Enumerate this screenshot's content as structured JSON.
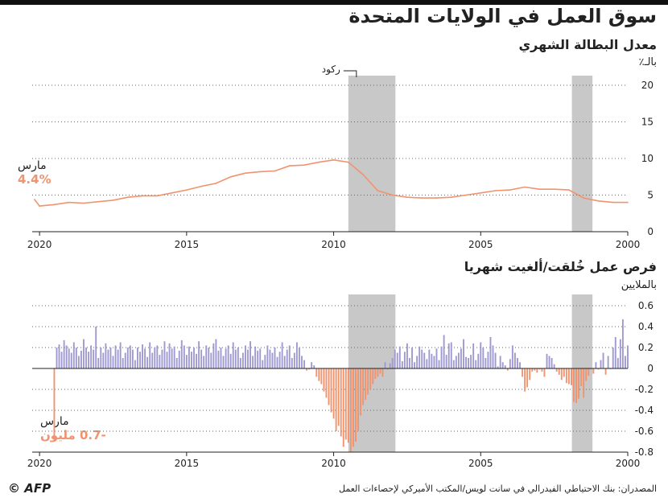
{
  "header": {
    "title": "سوق العمل في الولايات المتحدة",
    "source": "المصدران: بنك الاحتياطي الفيدرالي في سانت لويس/المكتب الأميركي لإحصاءات العمل",
    "logo": "© AFP"
  },
  "colors": {
    "line": "#f0936e",
    "pos_bar": "#9f99d1",
    "neg_bar": "#f0936e",
    "recession": "#c8c8c8",
    "grid": "#666666"
  },
  "chart_data": [
    {
      "type": "line",
      "title": "معدل البطالة الشهري",
      "ylabel": "بالـ٪",
      "x_reversed": true,
      "xlim": [
        2000.0,
        2020.25
      ],
      "ylim": [
        0,
        20
      ],
      "yticks": [
        0,
        5,
        10,
        15,
        20
      ],
      "xticks": [
        "2000",
        "2005",
        "2010",
        "2015",
        "2020"
      ],
      "recessions": [
        {
          "start": 2001.2,
          "end": 2001.9
        },
        {
          "start": 2007.9,
          "end": 2009.5
        }
      ],
      "recession_label": "ركود",
      "annotation": {
        "label": "مارس",
        "value": "4.4%"
      },
      "series": [
        {
          "x": [
            2000.0,
            2000.5,
            2001.0,
            2001.5,
            2002.0,
            2002.5,
            2003.0,
            2003.5,
            2004.0,
            2004.5,
            2005.0,
            2005.5,
            2006.0,
            2006.5,
            2007.0,
            2007.5,
            2008.0,
            2008.5,
            2009.0,
            2009.5,
            2010.0,
            2010.5,
            2011.0,
            2011.5,
            2012.0,
            2012.5,
            2013.0,
            2013.5,
            2014.0,
            2014.5,
            2015.0,
            2015.5,
            2016.0,
            2016.5,
            2017.0,
            2017.5,
            2018.0,
            2018.5,
            2019.0,
            2019.5,
            2019.75,
            2020.0,
            2020.17
          ],
          "y": [
            4.0,
            4.0,
            4.2,
            4.6,
            5.7,
            5.8,
            5.8,
            6.1,
            5.7,
            5.6,
            5.3,
            5.0,
            4.7,
            4.6,
            4.6,
            4.7,
            5.0,
            5.6,
            7.8,
            9.5,
            9.8,
            9.5,
            9.1,
            9.0,
            8.3,
            8.2,
            8.0,
            7.5,
            6.6,
            6.2,
            5.7,
            5.3,
            4.9,
            4.9,
            4.7,
            4.3,
            4.1,
            3.9,
            4.0,
            3.7,
            3.6,
            3.5,
            4.4
          ]
        }
      ]
    },
    {
      "type": "bar",
      "title": "فرص عمل خُلقت/ألغيت شهريا",
      "ylabel": "بالملايين",
      "x_reversed": true,
      "xlim": [
        2000.0,
        2020.25
      ],
      "ylim": [
        -0.8,
        0.6
      ],
      "yticks": [
        -0.8,
        -0.6,
        -0.4,
        -0.2,
        0,
        0.2,
        0.4,
        0.6
      ],
      "yticklabels": [
        "-0.8",
        "-0.6",
        "-0.4",
        "-0.2",
        "0",
        "0.2",
        "0.4",
        "0.6"
      ],
      "xticks": [
        "2000",
        "2005",
        "2010",
        "2015",
        "2020"
      ],
      "recessions": [
        {
          "start": 2001.2,
          "end": 2001.9
        },
        {
          "start": 2007.9,
          "end": 2009.5
        }
      ],
      "annotation": {
        "label": "مارس",
        "value": "-0.7 مليون"
      },
      "series": [
        {
          "start": 2000.0,
          "step": 0.08333,
          "values": [
            0.22,
            0.12,
            0.47,
            0.28,
            0.1,
            0.3,
            0.2,
            0.0,
            0.12,
            -0.06,
            0.15,
            0.08,
            -0.01,
            0.06,
            -0.05,
            0.0,
            -0.07,
            -0.12,
            -0.28,
            -0.17,
            -0.29,
            -0.33,
            -0.32,
            -0.16,
            -0.15,
            -0.14,
            -0.08,
            -0.11,
            -0.06,
            -0.03,
            0.04,
            0.1,
            0.12,
            0.14,
            -0.08,
            -0.03,
            -0.01,
            -0.04,
            -0.02,
            -0.03,
            -0.11,
            -0.18,
            -0.22,
            -0.08,
            0.06,
            0.1,
            0.15,
            0.22,
            0.09,
            -0.02,
            0.03,
            0.06,
            0.12,
            0.02,
            0.15,
            0.22,
            0.3,
            0.16,
            0.1,
            0.2,
            0.25,
            0.14,
            0.08,
            0.24,
            0.13,
            0.1,
            0.11,
            0.28,
            0.19,
            0.15,
            0.12,
            0.08,
            0.25,
            0.24,
            0.13,
            0.32,
            0.21,
            0.08,
            0.19,
            0.12,
            0.14,
            0.18,
            0.09,
            0.15,
            0.18,
            0.21,
            0.12,
            0.06,
            0.2,
            0.1,
            0.24,
            0.16,
            0.07,
            0.21,
            0.15,
            0.18,
            0.1,
            0.05,
            -0.01,
            0.06,
            -0.08,
            -0.05,
            -0.08,
            -0.1,
            -0.15,
            -0.2,
            -0.25,
            -0.3,
            -0.35,
            -0.45,
            -0.6,
            -0.7,
            -0.75,
            -0.8,
            -0.71,
            -0.68,
            -0.75,
            -0.65,
            -0.55,
            -0.6,
            -0.48,
            -0.42,
            -0.35,
            -0.28,
            -0.22,
            -0.15,
            -0.12,
            -0.08,
            0.03,
            0.06,
            -0.01,
            -0.02,
            0.08,
            0.12,
            0.2,
            0.25,
            0.15,
            0.1,
            0.22,
            0.18,
            0.12,
            0.25,
            0.16,
            0.11,
            0.2,
            0.15,
            0.18,
            0.22,
            0.13,
            0.08,
            0.19,
            0.17,
            0.21,
            0.12,
            0.26,
            0.18,
            0.22,
            0.15,
            0.1,
            0.2,
            0.18,
            0.25,
            0.14,
            0.22,
            0.19,
            0.12,
            0.2,
            0.17,
            0.28,
            0.24,
            0.15,
            0.2,
            0.22,
            0.12,
            0.18,
            0.26,
            0.14,
            0.2,
            0.16,
            0.21,
            0.13,
            0.22,
            0.27,
            0.17,
            0.1,
            0.21,
            0.19,
            0.24,
            0.16,
            0.26,
            0.18,
            0.13,
            0.22,
            0.2,
            0.15,
            0.25,
            0.11,
            0.19,
            0.23,
            0.16,
            0.2,
            0.08,
            0.18,
            0.22,
            0.2,
            0.15,
            0.1,
            0.25,
            0.18,
            0.22,
            0.12,
            0.2,
            0.18,
            0.24,
            0.15,
            0.2,
            0.1,
            0.4,
            0.18,
            0.22,
            0.16,
            0.2,
            0.28,
            0.17,
            0.12,
            0.2,
            0.25,
            0.15,
            0.19,
            0.22,
            0.27,
            0.16,
            0.23,
            0.2,
            -0.7
          ]
        }
      ]
    }
  ]
}
